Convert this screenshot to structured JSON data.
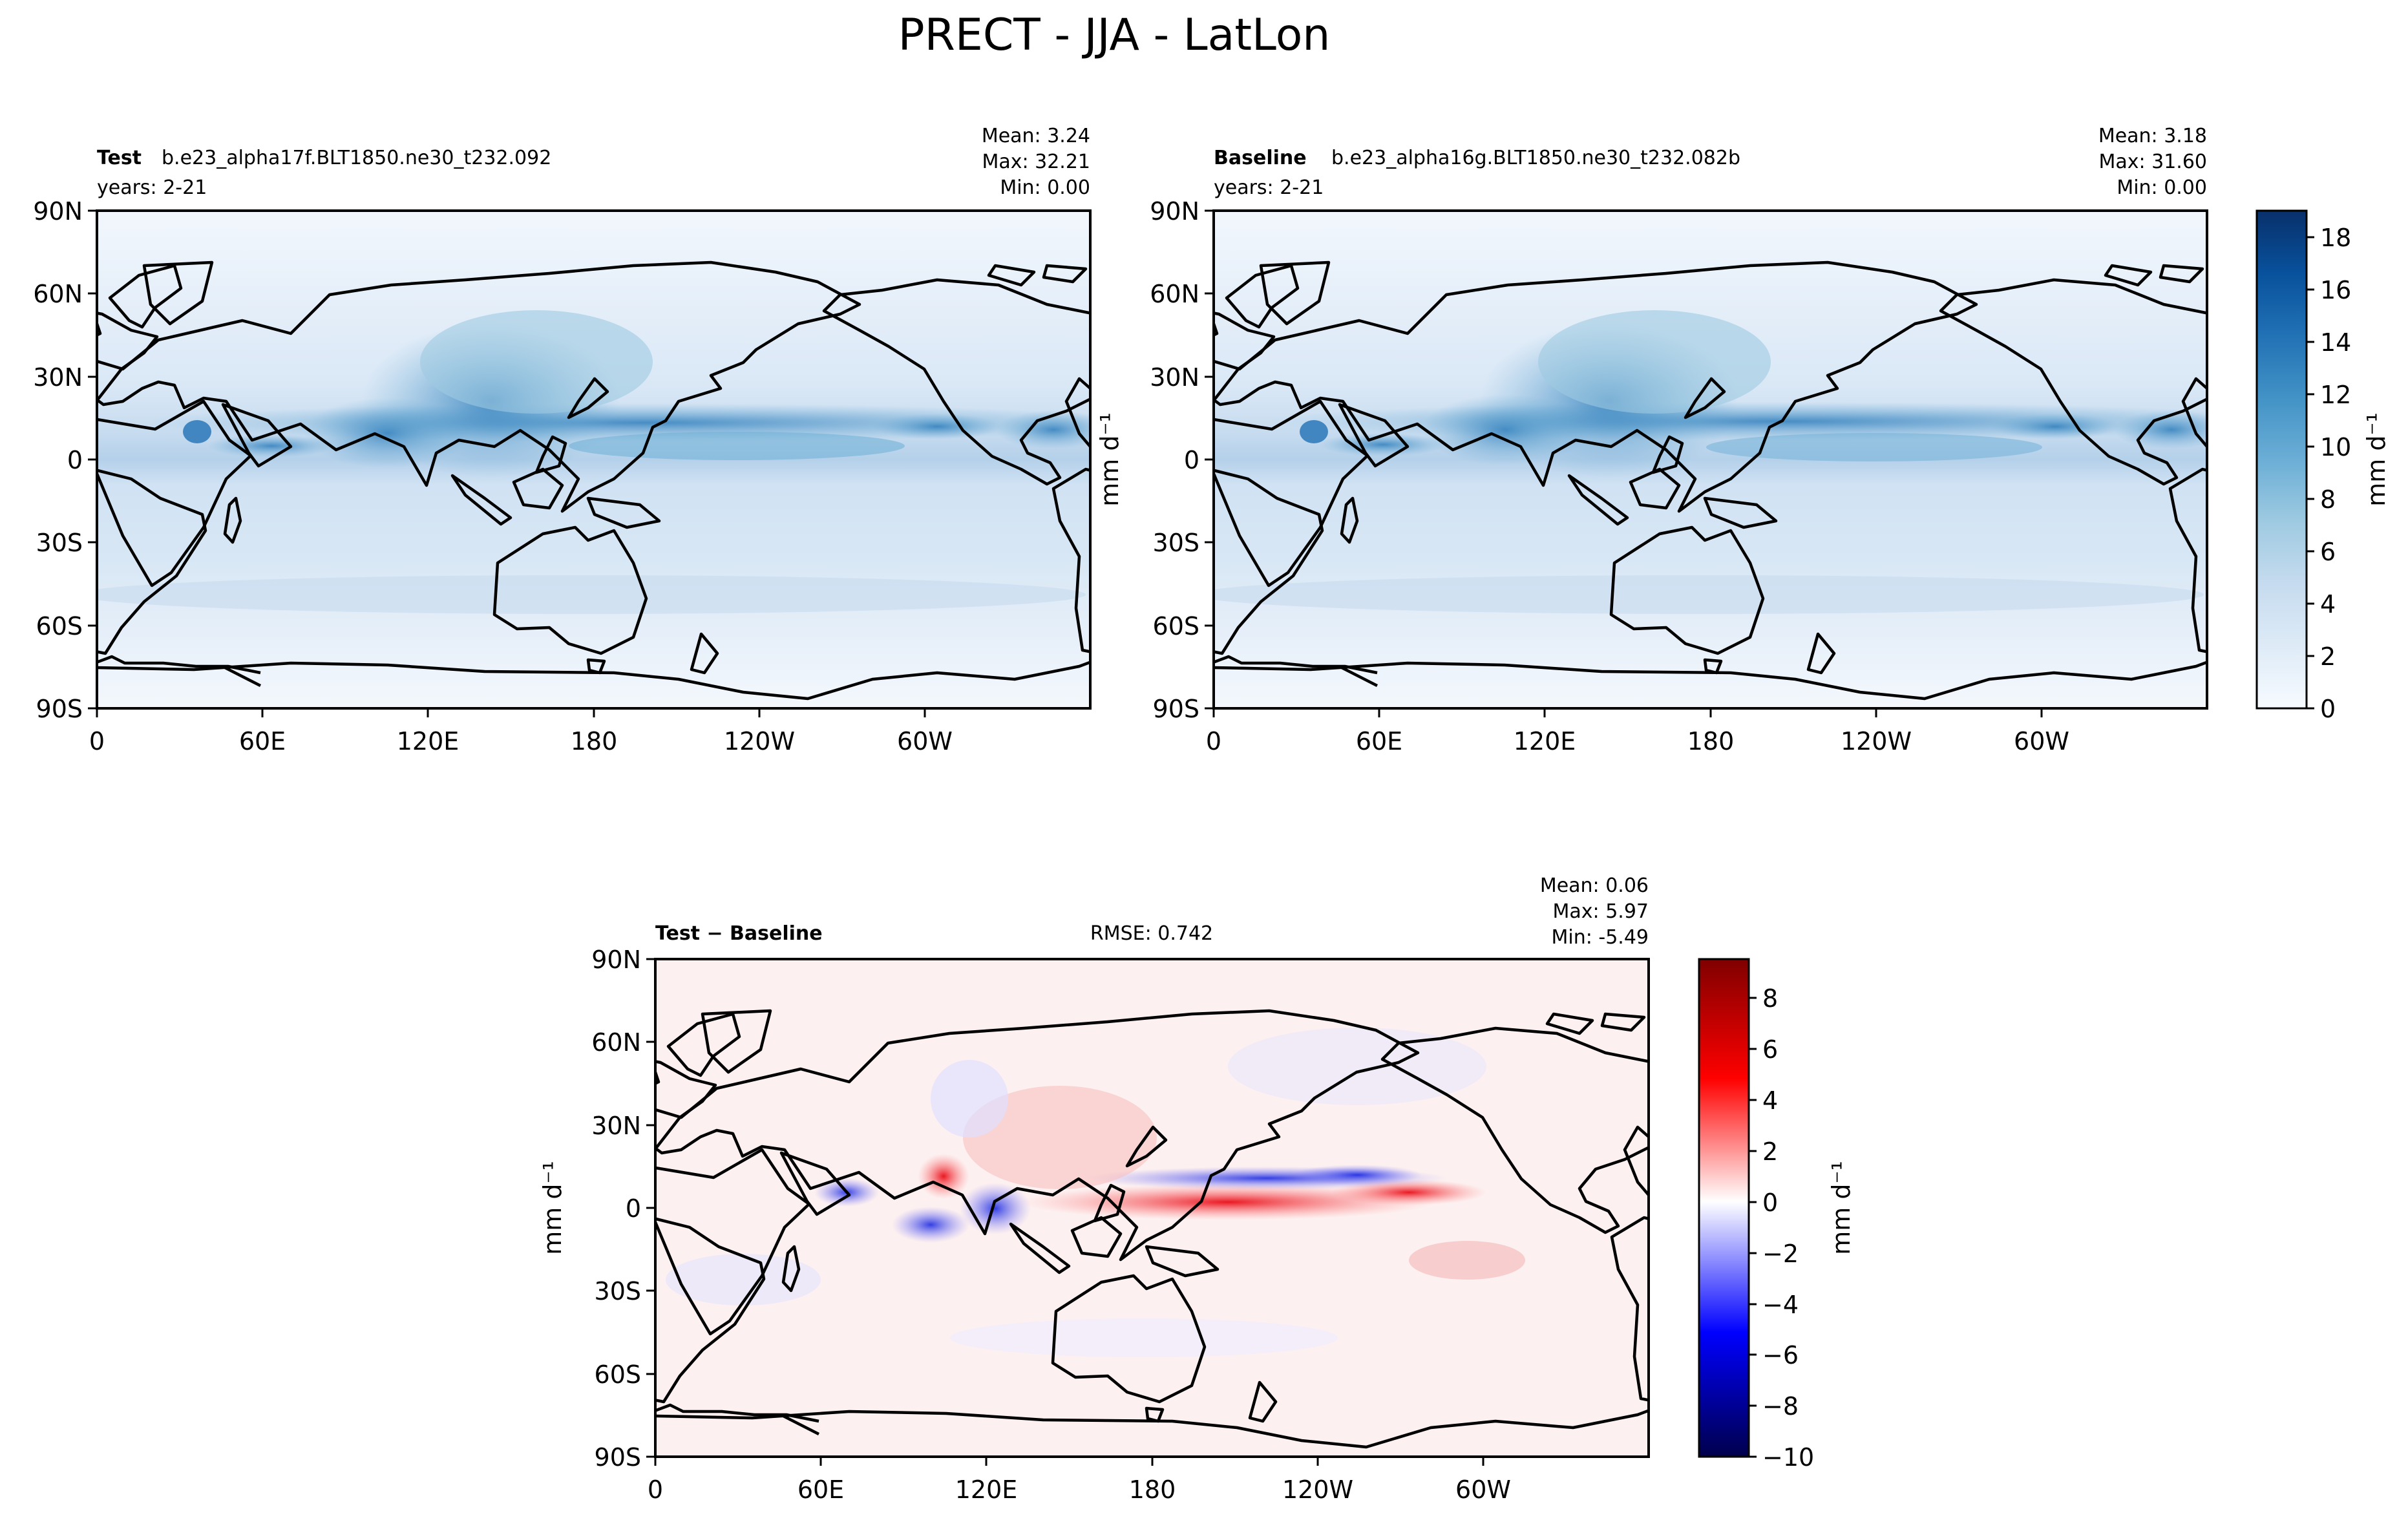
{
  "figure": {
    "title": "PRECT - JJA - LatLon"
  },
  "chart_data": [
    {
      "type": "heatmap",
      "panel": "test",
      "label_bold": "Test",
      "case_name": "b.e23_alpha17f.BLT1850.ne30_t232.092",
      "years": "years: 2-21",
      "stats": {
        "mean": "Mean:  3.24",
        "max": "Max: 32.21",
        "min": "Min:  0.00"
      },
      "xticks": [
        "0",
        "60E",
        "120E",
        "180",
        "120W",
        "60W"
      ],
      "yticks": [
        "90N",
        "60N",
        "30N",
        "0",
        "30S",
        "60S",
        "90S"
      ],
      "ylabel": "mm d⁻¹",
      "xlim": [
        0,
        360
      ],
      "ylim": [
        -90,
        90
      ]
    },
    {
      "type": "heatmap",
      "panel": "baseline",
      "label_bold": "Baseline",
      "case_name": "b.e23_alpha16g.BLT1850.ne30_t232.082b",
      "years": "years: 2-21",
      "stats": {
        "mean": "Mean:  3.18",
        "max": "Max: 31.60",
        "min": "Min:  0.00"
      },
      "xticks": [
        "0",
        "60E",
        "120E",
        "180",
        "120W",
        "60W"
      ],
      "yticks": [
        "90N",
        "60N",
        "30N",
        "0",
        "30S",
        "60S",
        "90S"
      ],
      "xlim": [
        0,
        360
      ],
      "ylim": [
        -90,
        90
      ],
      "colorbar": {
        "label": "mm d⁻¹",
        "ticks": [
          "0",
          "2",
          "4",
          "6",
          "8",
          "10",
          "12",
          "14",
          "16",
          "18"
        ],
        "range": [
          0,
          19
        ],
        "colormap": "Blues",
        "colors": [
          "#f7fbff",
          "#deebf7",
          "#c6dbef",
          "#9ecae1",
          "#6baed6",
          "#4292c6",
          "#2171b5",
          "#08519c",
          "#08306b"
        ]
      }
    },
    {
      "type": "heatmap",
      "panel": "difference",
      "label_bold": "Test − Baseline",
      "rmse": "RMSE: 0.742",
      "stats": {
        "mean": "Mean:  0.06",
        "max": "Max:  5.97",
        "min": "Min: -5.49"
      },
      "xticks": [
        "0",
        "60E",
        "120E",
        "180",
        "120W",
        "60W"
      ],
      "yticks": [
        "90N",
        "60N",
        "30N",
        "0",
        "30S",
        "60S",
        "90S"
      ],
      "ylabel": "mm d⁻¹",
      "xlim": [
        0,
        360
      ],
      "ylim": [
        -90,
        90
      ],
      "colorbar": {
        "label": "mm d⁻¹",
        "ticks": [
          "8",
          "6",
          "4",
          "2",
          "0",
          "−2",
          "−4",
          "−6",
          "−8",
          "−10"
        ],
        "range": [
          -10,
          9.5
        ],
        "colormap": "seismic",
        "colors": [
          "#00004c",
          "#0000ff",
          "#ffffff",
          "#ff0000",
          "#800000"
        ]
      }
    }
  ]
}
